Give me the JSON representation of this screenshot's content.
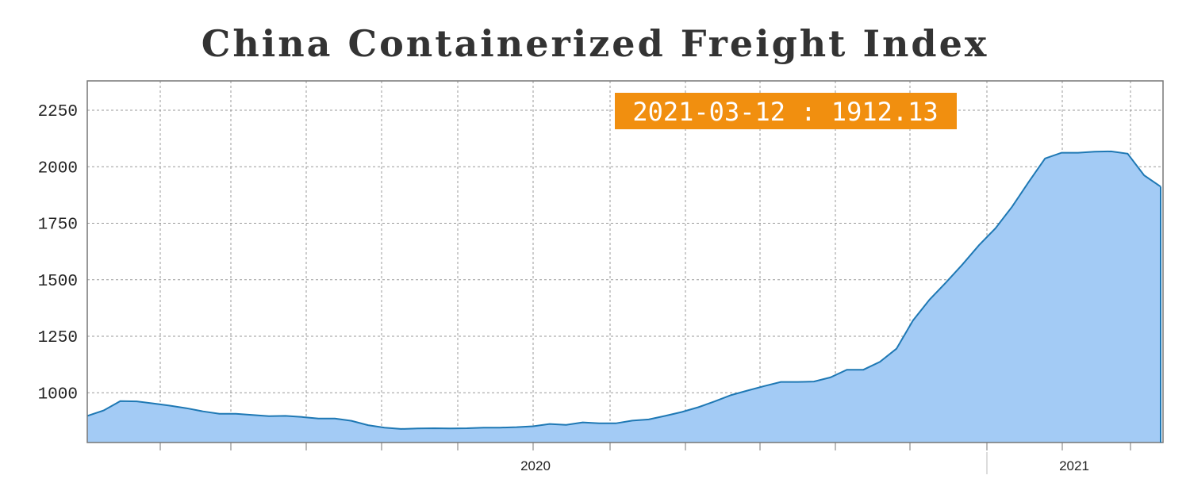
{
  "chart_data": {
    "type": "area",
    "title": "China Containerized Freight Index",
    "xlabel": "",
    "ylabel": "",
    "ylim": [
      780,
      2380
    ],
    "y_ticks": [
      1000,
      1250,
      1500,
      1750,
      2000,
      2250
    ],
    "y_tick_labels": [
      "1000",
      "1250",
      "1500",
      "1750",
      "2000",
      "2250"
    ],
    "x_tick_labels": [
      "2020",
      "2021"
    ],
    "grid": true,
    "colors": {
      "fill": "#a3cbf5",
      "line": "#1e78b4",
      "tooltip_bg": "#f18f0f",
      "grid": "#999999"
    },
    "tooltip": "2021-03-12 : 1912.13",
    "series": [
      {
        "values": [
          898,
          922,
          963,
          962,
          953,
          943,
          932,
          918,
          907,
          907,
          902,
          897,
          898,
          893,
          886,
          886,
          876,
          857,
          846,
          840,
          842,
          843,
          842,
          843,
          846,
          846,
          848,
          852,
          862,
          858,
          869,
          865,
          865,
          877,
          882,
          898,
          915,
          936,
          962,
          990,
          1010,
          1030,
          1048,
          1048,
          1050,
          1068,
          1102,
          1102,
          1137,
          1195,
          1320,
          1412,
          1488,
          1568,
          1653,
          1728,
          1823,
          1932,
          2037,
          2062,
          2062,
          2067,
          2068,
          2058,
          1962,
          1912.13
        ]
      }
    ]
  }
}
